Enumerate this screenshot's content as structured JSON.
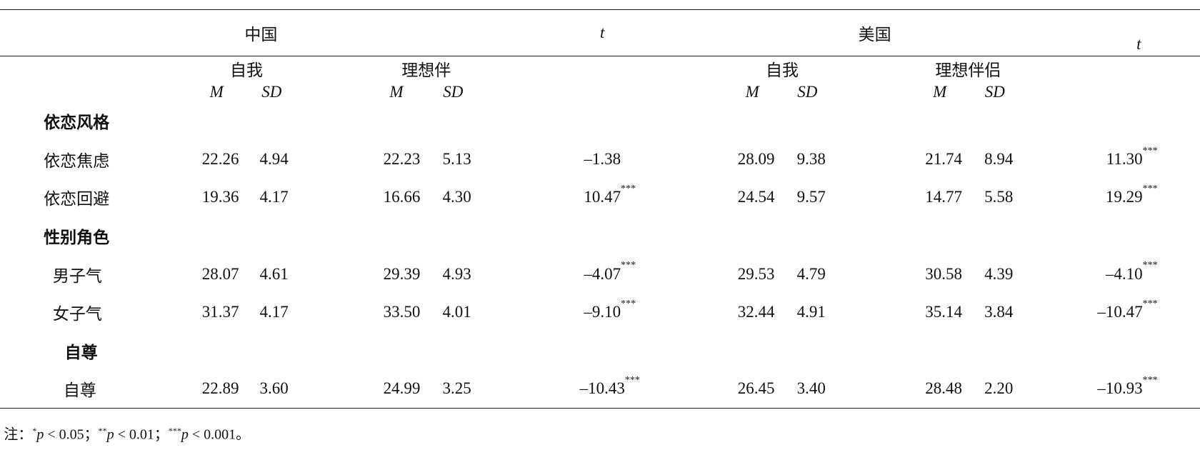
{
  "header": {
    "groups": [
      "中国",
      "t",
      "美国",
      "t"
    ],
    "subgroups": [
      "自我",
      "理想伴",
      "自我",
      "理想伴侣"
    ],
    "stats": [
      "M",
      "SD",
      "M",
      "SD",
      "M",
      "SD",
      "M",
      "SD"
    ]
  },
  "sections": [
    {
      "title": "依恋风格",
      "rows": [
        {
          "label": "依恋焦虑",
          "values": [
            "22.26",
            "4.94",
            "22.23",
            "5.13",
            "28.09",
            "9.38",
            "21.74",
            "8.94"
          ],
          "t": [
            {
              "text": "–1.38"
            },
            {
              "text": "11.30",
              "sig": "***"
            }
          ]
        },
        {
          "label": "依恋回避",
          "values": [
            "19.36",
            "4.17",
            "16.66",
            "4.30",
            "24.54",
            "9.57",
            "14.77",
            "5.58"
          ],
          "t": [
            {
              "text": "10.47",
              "sig": "***"
            },
            {
              "text": "19.29",
              "sig": "***"
            }
          ]
        }
      ]
    },
    {
      "title": "性别角色",
      "rows": [
        {
          "label": "男子气",
          "values": [
            "28.07",
            "4.61",
            "29.39",
            "4.93",
            "29.53",
            "4.79",
            "30.58",
            "4.39"
          ],
          "t": [
            {
              "text": "–4.07",
              "sig": "***"
            },
            {
              "text": "–4.10",
              "sig": "***"
            }
          ]
        },
        {
          "label": "女子气",
          "values": [
            "31.37",
            "4.17",
            "33.50",
            "4.01",
            "32.44",
            "4.91",
            "35.14",
            "3.84"
          ],
          "t": [
            {
              "text": "–9.10",
              "sig": "***"
            },
            {
              "text": "–10.47",
              "sig": "***"
            }
          ]
        }
      ]
    },
    {
      "title": "自尊",
      "rows": [
        {
          "label": "自尊",
          "values": [
            "22.89",
            "3.60",
            "24.99",
            "3.25",
            "26.45",
            "3.40",
            "28.48",
            "2.20"
          ],
          "t": [
            {
              "text": "–10.43",
              "sig": "***"
            },
            {
              "text": "–10.93",
              "sig": "***"
            }
          ]
        }
      ]
    }
  ],
  "note": {
    "prefix": "注：",
    "items": [
      {
        "sup": "*",
        "var": "p",
        "text": " < 0.05；"
      },
      {
        "sup": "**",
        "var": "p",
        "text": " < 0.01；"
      },
      {
        "sup": "***",
        "var": "p",
        "text": " < 0.001。"
      }
    ]
  }
}
